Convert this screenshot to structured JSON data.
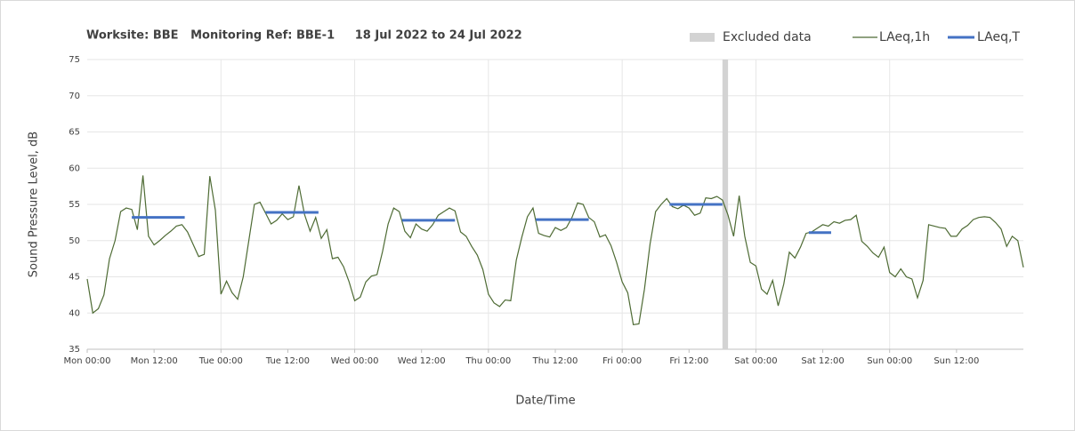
{
  "chart_data": {
    "type": "line",
    "title": "Worksite: BBE   Monitoring Ref: BBE-1     18 Jul 2022 to 24 Jul 2022",
    "ylabel": "Sound Pressure Level, dB",
    "xlabel": "Date/Time",
    "xlim": [
      0,
      168
    ],
    "ylim": [
      35,
      75
    ],
    "yticks": [
      35,
      40,
      45,
      50,
      55,
      60,
      65,
      70,
      75
    ],
    "xticks": [
      {
        "value": 0,
        "label": "Mon 00:00"
      },
      {
        "value": 12,
        "label": "Mon 12:00"
      },
      {
        "value": 24,
        "label": "Tue 00:00"
      },
      {
        "value": 36,
        "label": "Tue 12:00"
      },
      {
        "value": 48,
        "label": "Wed 00:00"
      },
      {
        "value": 60,
        "label": "Wed 12:00"
      },
      {
        "value": 72,
        "label": "Thu 00:00"
      },
      {
        "value": 84,
        "label": "Thu 12:00"
      },
      {
        "value": 96,
        "label": "Fri 00:00"
      },
      {
        "value": 108,
        "label": "Fri 12:00"
      },
      {
        "value": 120,
        "label": "Sat 00:00"
      },
      {
        "value": 132,
        "label": "Sat 12:00"
      },
      {
        "value": 144,
        "label": "Sun 00:00"
      },
      {
        "value": 156,
        "label": "Sun 12:00"
      }
    ],
    "grid": true,
    "x": [
      0,
      1,
      2,
      3,
      4,
      5,
      6,
      7,
      8,
      9,
      10,
      11,
      12,
      13,
      14,
      15,
      16,
      17,
      18,
      19,
      20,
      21,
      22,
      23,
      24,
      25,
      26,
      27,
      28,
      29,
      30,
      31,
      32,
      33,
      34,
      35,
      36,
      37,
      38,
      39,
      40,
      41,
      42,
      43,
      44,
      45,
      46,
      47,
      48,
      49,
      50,
      51,
      52,
      53,
      54,
      55,
      56,
      57,
      58,
      59,
      60,
      61,
      62,
      63,
      64,
      65,
      66,
      67,
      68,
      69,
      70,
      71,
      72,
      73,
      74,
      75,
      76,
      77,
      78,
      79,
      80,
      81,
      82,
      83,
      84,
      85,
      86,
      87,
      88,
      89,
      90,
      91,
      92,
      93,
      94,
      95,
      96,
      97,
      98,
      99,
      100,
      101,
      102,
      103,
      104,
      105,
      106,
      107,
      108,
      109,
      110,
      111,
      112,
      113,
      114,
      115,
      116,
      117,
      118,
      119,
      120,
      121,
      122,
      123,
      124,
      125,
      126,
      127,
      128,
      129,
      130,
      131,
      132,
      133,
      134,
      135,
      136,
      137,
      138,
      139,
      140,
      141,
      142,
      143,
      144,
      145,
      146,
      147,
      148,
      149,
      150,
      151,
      152,
      153,
      154,
      155,
      156,
      157,
      158,
      159,
      160,
      161,
      162,
      163,
      164,
      165,
      166,
      167,
      168
    ],
    "series": [
      {
        "name": "LAeq,1h",
        "color": "#4e6b34",
        "values": [
          44.7,
          40,
          40.6,
          42.5,
          47.5,
          50,
          54,
          54.5,
          54.3,
          51.5,
          59,
          50.6,
          49.4,
          50,
          50.7,
          51.3,
          52,
          52.2,
          51.2,
          49.5,
          47.8,
          48.1,
          58.9,
          54.2,
          42.6,
          44.4,
          42.8,
          41.9,
          45,
          50,
          55,
          55.3,
          53.8,
          52.3,
          52.8,
          53.7,
          52.9,
          53.3,
          57.6,
          53.6,
          51.3,
          53.2,
          50.3,
          51.5,
          47.5,
          47.7,
          46.4,
          44.3,
          41.7,
          42.2,
          44.3,
          45.1,
          45.3,
          48.5,
          52.3,
          54.5,
          54,
          51.3,
          50.4,
          52.3,
          51.6,
          51.3,
          52.2,
          53.5,
          54,
          54.5,
          54.1,
          51.2,
          50.6,
          49.2,
          48,
          46,
          42.6,
          41.4,
          40.9,
          41.8,
          41.7,
          47.3,
          50.5,
          53.3,
          54.5,
          51,
          50.7,
          50.5,
          51.8,
          51.4,
          51.8,
          53.2,
          55.2,
          55,
          53.2,
          52.6,
          50.5,
          50.8,
          49.3,
          47,
          44.3,
          42.8,
          38.4,
          38.5,
          43.3,
          49.5,
          54,
          55,
          55.8,
          54.7,
          54.4,
          54.9,
          54.5,
          53.5,
          53.8,
          55.9,
          55.8,
          56.1,
          55.6,
          53.5,
          50.6,
          56.2,
          50.6,
          47,
          46.5,
          43.3,
          42.6,
          44.5,
          41,
          44,
          48.4,
          47.6,
          49.1,
          51,
          51.2,
          51.7,
          52.2,
          52,
          52.6,
          52.4,
          52.8,
          52.9,
          53.5,
          49.9,
          49.2,
          48.3,
          47.7,
          49.1,
          45.6,
          45,
          46.1,
          45,
          44.7,
          42.1,
          44.5,
          52.2,
          52,
          51.8,
          51.7,
          50.6,
          50.6,
          51.6,
          52.1,
          52.9,
          53.2,
          53.3,
          53.2,
          52.5,
          51.6,
          49.2,
          50.6,
          50,
          46.3
        ]
      }
    ],
    "periods": {
      "name": "LAeq,T",
      "color": "#4472c4",
      "segments": [
        {
          "x": [
            8,
            17.5
          ],
          "value": 53.2
        },
        {
          "x": [
            32,
            41.5
          ],
          "value": 53.9
        },
        {
          "x": [
            56.5,
            66
          ],
          "value": 52.8
        },
        {
          "x": [
            80.5,
            90
          ],
          "value": 52.9
        },
        {
          "x": [
            104.5,
            114
          ],
          "value": 55
        },
        {
          "x": [
            129.5,
            133.5
          ],
          "value": 51.1
        }
      ]
    },
    "excluded": {
      "name": "Excluded data",
      "color": "#d3d3d3",
      "x": [
        114,
        115
      ]
    }
  }
}
